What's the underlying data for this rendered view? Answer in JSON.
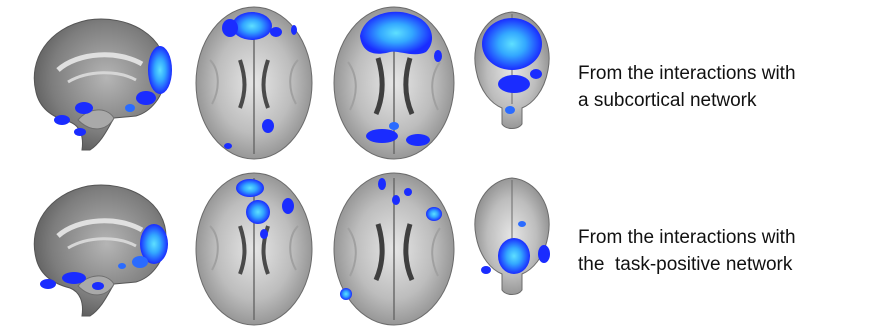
{
  "colors": {
    "activation_dark": "#1a2cff",
    "activation_mid": "#2a6bff",
    "activation_light": "#3cc8ff",
    "brain_gray": "#8f8f8f"
  },
  "figure": {
    "rows": [
      {
        "caption_line1": "From the interactions with",
        "caption_line2": "a subcortical network"
      },
      {
        "caption_line1": "From the interactions with",
        "caption_line2": "the  task-positive network"
      }
    ]
  }
}
